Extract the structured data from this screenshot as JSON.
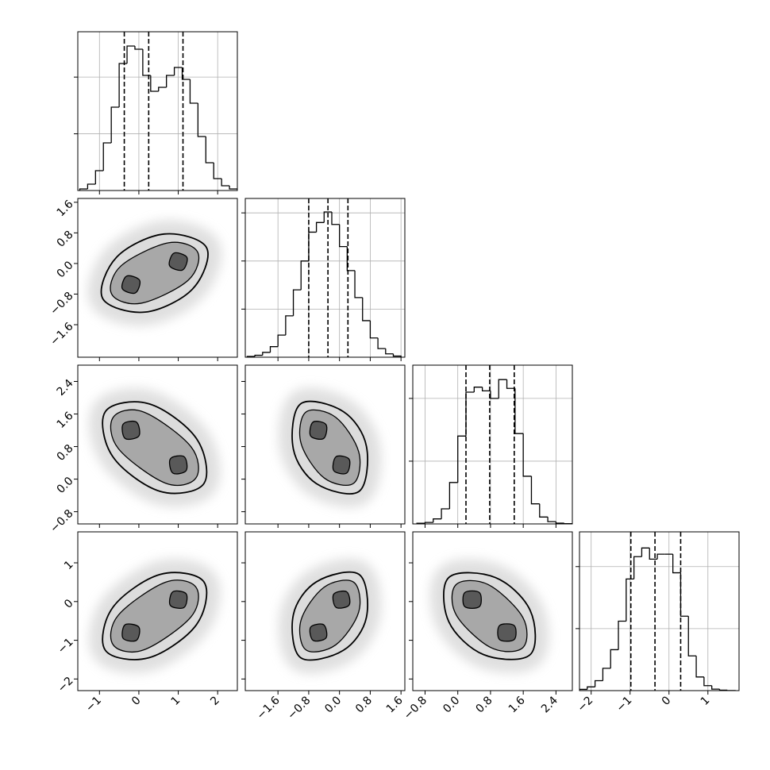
{
  "chart_data": {
    "type": "corner",
    "line_color": "#000000",
    "grid_color": "#b0b0b0",
    "contour_colors": [
      "#dcdcdc",
      "#a8a8a8",
      "#595959",
      "#595959"
    ],
    "hist_grid": true,
    "variables": [
      {
        "lim": [
          -1.55,
          2.5
        ],
        "ticks": [
          {
            "value": -1,
            "label": "−1"
          },
          0,
          1,
          2
        ],
        "hist": {
          "bins": [
            -1.5,
            -1.3,
            -1.1,
            -0.9,
            -0.7,
            -0.5,
            -0.3,
            -0.1,
            0.1,
            0.3,
            0.5,
            0.7,
            0.9,
            1.1,
            1.3,
            1.5,
            1.7,
            1.9,
            2.1,
            2.3,
            2.5
          ],
          "counts": [
            14,
            56,
            175,
            420,
            735,
            1120,
            1274,
            1246,
            1015,
            875,
            910,
            1015,
            1085,
            980,
            770,
            476,
            245,
            105,
            42,
            14
          ],
          "ylim": [
            0,
            1400
          ],
          "yticks": [
            500,
            1000
          ]
        },
        "quantiles": [
          -0.37,
          0.25,
          1.12
        ]
      },
      {
        "lim": [
          -2.45,
          1.7
        ],
        "ticks": [
          {
            "value": -1.6,
            "label": "−1.6"
          },
          {
            "value": -0.8,
            "label": "−0.8"
          },
          {
            "value": 0,
            "label": "0.0"
          },
          0.8,
          1.6
        ],
        "hist": {
          "bins": [
            -2.4,
            -2.2,
            -2.0,
            -1.8,
            -1.6,
            -1.4,
            -1.2,
            -1.0,
            -0.8,
            -0.6,
            -0.4,
            -0.2,
            0,
            0.2,
            0.4,
            0.6,
            0.8,
            1.0,
            1.2,
            1.4,
            1.6
          ],
          "counts": [
            8,
            20,
            50,
            110,
            230,
            430,
            700,
            1000,
            1300,
            1400,
            1510,
            1380,
            1150,
            900,
            620,
            380,
            200,
            90,
            35,
            12
          ],
          "ylim": [
            0,
            1650
          ],
          "yticks": [
            500,
            1000,
            1500
          ]
        },
        "quantiles": [
          -0.8,
          -0.3,
          0.22
        ]
      },
      {
        "lim": [
          -1.1,
          2.8
        ],
        "ticks": [
          {
            "value": -0.8,
            "label": "−0.8"
          },
          {
            "value": 0,
            "label": "0.0"
          },
          0.8,
          1.6,
          2.4
        ],
        "hist": {
          "bins": [
            -1.0,
            -0.8,
            -0.6,
            -0.4,
            -0.2,
            0,
            0.2,
            0.4,
            0.6,
            0.8,
            1.0,
            1.2,
            1.4,
            1.6,
            1.8,
            2.0,
            2.2,
            2.4,
            2.6,
            2.8
          ],
          "counts": [
            5,
            12,
            40,
            120,
            330,
            700,
            1050,
            1090,
            1060,
            1000,
            1150,
            1080,
            720,
            380,
            160,
            55,
            18,
            6,
            2
          ],
          "ylim": [
            0,
            1265
          ],
          "yticks": [
            500,
            1000
          ]
        },
        "quantiles": [
          0.2,
          0.78,
          1.38
        ]
      },
      {
        "lim": [
          -2.3,
          1.8
        ],
        "ticks": [
          {
            "value": -2,
            "label": "−2"
          },
          {
            "value": -1,
            "label": "−1"
          },
          0,
          1
        ],
        "hist": {
          "bins": [
            -2.3,
            -2.1,
            -1.9,
            -1.7,
            -1.5,
            -1.3,
            -1.1,
            -0.9,
            -0.7,
            -0.5,
            -0.3,
            -0.1,
            0.1,
            0.3,
            0.5,
            0.7,
            0.9,
            1.1,
            1.3,
            1.5,
            1.7
          ],
          "counts": [
            10,
            30,
            80,
            180,
            330,
            560,
            900,
            1080,
            1150,
            1060,
            1100,
            1100,
            950,
            600,
            280,
            110,
            40,
            12,
            4,
            1
          ],
          "ylim": [
            0,
            1280
          ],
          "yticks": [
            500,
            1000
          ]
        },
        "quantiles": [
          -0.98,
          -0.36,
          0.3
        ]
      }
    ],
    "pairs": [
      [
        {
          "contours": [
            {
              "x": [
                -0.56,
                -0.92,
                0.16,
                1.36,
                1.72,
                0.64
              ],
              "y": [
                0.17,
                -0.91,
                -1.27,
                -0.67,
                0.41,
                0.77
              ]
            },
            {
              "x": [
                -0.45,
                -0.69,
                0.05,
                1.25,
                1.49,
                0.75
              ],
              "y": [
                -0.06,
                -0.8,
                -1.04,
                -0.44,
                0.3,
                0.54
              ]
            },
            {
              "x": [
                -0.31,
                -0.42,
                -0.09,
                0.02
              ],
              "y": [
                -0.33,
                -0.66,
                -0.77,
                -0.44
              ]
            },
            {
              "x": [
                0.89,
                0.78,
                1.11,
                1.22
              ],
              "y": [
                0.27,
                -0.06,
                -0.17,
                0.16
              ]
            }
          ]
        }
      ],
      [
        {
          "contours": [
            {
              "x": [
                0.26,
                -0.85,
                -0.66,
                0.54,
                1.65,
                1.46
              ],
              "y": [
                1.85,
                1.66,
                0.55,
                -0.3,
                -0.11,
                1.0
              ]
            },
            {
              "x": [
                0.12,
                -0.65,
                -0.52,
                0.68,
                1.45,
                1.32
              ],
              "y": [
                1.65,
                1.52,
                0.75,
                -0.1,
                0.03,
                0.8
              ]
            },
            {
              "x": [
                -0.06,
                -0.4,
                -0.35,
                0.0
              ],
              "y": [
                1.4,
                1.35,
                1.0,
                1.06
              ]
            },
            {
              "x": [
                1.15,
                0.8,
                0.86,
                1.2
              ],
              "y": [
                0.55,
                0.5,
                0.15,
                0.21
              ]
            }
          ]
        },
        {
          "contours": [
            {
              "x": [
                0.1,
                -1.01,
                -1.2,
                -0.6,
                0.51,
                0.7
              ],
              "y": [
                1.66,
                1.85,
                0.74,
                -0.11,
                -0.3,
                0.81
              ]
            },
            {
              "x": [
                -0.1,
                -0.87,
                -1.0,
                -0.4,
                0.37,
                0.5
              ],
              "y": [
                1.52,
                1.65,
                0.88,
                0.03,
                -0.1,
                0.67
              ]
            },
            {
              "x": [
                -0.35,
                -0.69,
                -0.75,
                -0.41
              ],
              "y": [
                1.34,
                1.4,
                1.06,
                1.0
              ]
            },
            {
              "x": [
                0.25,
                -0.09,
                -0.15,
                0.19
              ],
              "y": [
                0.49,
                0.55,
                0.21,
                0.15
              ]
            }
          ]
        }
      ],
      [
        {
          "contours": [
            {
              "x": [
                -0.66,
                -0.85,
                0.26,
                1.46,
                1.65,
                0.54
              ],
              "y": [
                -0.15,
                -1.26,
                -1.45,
                -0.6,
                0.51,
                0.7
              ]
            },
            {
              "x": [
                -0.52,
                -0.65,
                0.12,
                1.32,
                1.45,
                0.68
              ],
              "y": [
                -0.35,
                -1.12,
                -1.25,
                -0.4,
                0.37,
                0.5
              ]
            },
            {
              "x": [
                -0.35,
                -0.4,
                -0.06,
                0.0
              ],
              "y": [
                -0.6,
                -0.95,
                -1.0,
                -0.66
              ]
            },
            {
              "x": [
                0.86,
                0.8,
                1.15,
                1.2
              ],
              "y": [
                0.25,
                -0.1,
                -0.15,
                0.2
              ]
            }
          ]
        },
        {
          "contours": [
            {
              "x": [
                -1.2,
                -1.01,
                0.1,
                0.7,
                0.51,
                -0.6
              ],
              "y": [
                -0.34,
                -1.45,
                -1.26,
                -0.41,
                0.7,
                0.51
              ]
            },
            {
              "x": [
                -1.0,
                -0.87,
                -0.1,
                0.5,
                0.37,
                -0.4
              ],
              "y": [
                -0.48,
                -1.25,
                -1.12,
                -0.27,
                0.5,
                0.37
              ]
            },
            {
              "x": [
                -0.75,
                -0.69,
                -0.35,
                -0.41
              ],
              "y": [
                -0.66,
                -1.0,
                -0.94,
                -0.6
              ]
            },
            {
              "x": [
                -0.15,
                -0.09,
                0.25,
                0.19
              ],
              "y": [
                0.19,
                -0.15,
                -0.09,
                0.25
              ]
            }
          ]
        },
        {
          "contours": [
            {
              "x": [
                0.63,
                1.77,
                1.77,
                0.92,
                -0.22,
                -0.22
              ],
              "y": [
                -1.37,
                -1.37,
                -0.23,
                0.62,
                0.62,
                -0.52
              ]
            },
            {
              "x": [
                0.81,
                1.59,
                1.59,
                0.74,
                -0.04,
                -0.04
              ],
              "y": [
                -1.19,
                -1.19,
                -0.41,
                0.44,
                0.44,
                -0.34
              ]
            },
            {
              "x": [
                1.02,
                1.38,
                1.38,
                1.02
              ],
              "y": [
                -0.98,
                -0.98,
                -0.62,
                -0.62
              ]
            },
            {
              "x": [
                0.17,
                0.53,
                0.53,
                0.17
              ],
              "y": [
                -0.13,
                -0.13,
                0.23,
                0.23
              ]
            }
          ]
        }
      ]
    ]
  }
}
